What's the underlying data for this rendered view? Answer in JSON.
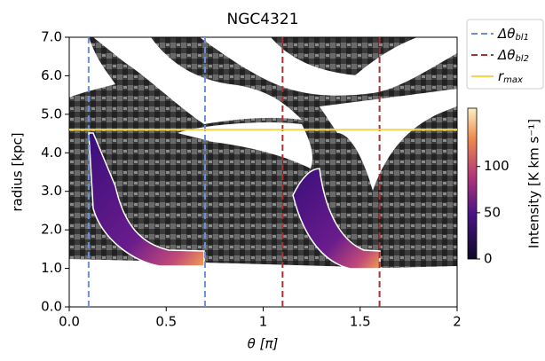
{
  "chart_data": {
    "type": "heatmap",
    "title": "NGC4321",
    "xlabel": "θ [π]",
    "ylabel": "radius [kpc]",
    "xlim": [
      0,
      2
    ],
    "xticks": [
      {
        "value": 0,
        "label": "0.0"
      },
      0.5,
      1,
      1.5,
      2
    ],
    "ylim": [
      0,
      7
    ],
    "yticks": [
      {
        "value": 0,
        "label": "0.0"
      },
      {
        "value": 1,
        "label": "1.0"
      },
      {
        "value": 2,
        "label": "2.0"
      },
      {
        "value": 3,
        "label": "3.0"
      },
      {
        "value": 4,
        "label": "4.0"
      },
      {
        "value": 5,
        "label": "5.0"
      },
      {
        "value": 6,
        "label": "6.0"
      },
      {
        "value": 7,
        "label": "7.0"
      }
    ],
    "series": [
      {
        "name": "Δθ",
        "subscript": "bl1",
        "color": "#6b8ee0",
        "style": "dashed",
        "orientation": "vertical",
        "values": [
          0.1,
          0.7
        ]
      },
      {
        "name": "Δθ",
        "subscript": "bl2",
        "color": "#a83232",
        "style": "dashed",
        "orientation": "vertical",
        "values": [
          1.1,
          1.6
        ]
      },
      {
        "name": "r",
        "subscript": "max",
        "color": "#f3d64a",
        "style": "solid",
        "orientation": "horizontal",
        "values": [
          4.6
        ]
      }
    ],
    "colorbar": {
      "label": "Intensity [K km s⁻¹]",
      "lim": [
        0,
        163
      ],
      "ticks": [
        0,
        50,
        100
      ]
    }
  }
}
